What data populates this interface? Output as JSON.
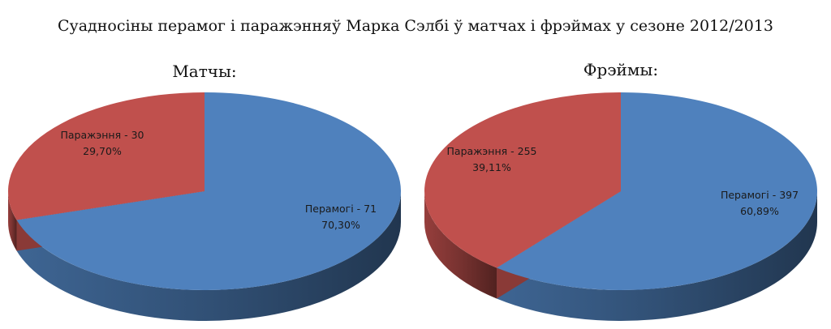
{
  "title": "Суадносіны перамог і паражэнняў Марка Сэлбі ў матчах і фрэймах у сезоне 2012/2013",
  "colors": {
    "win": "#4f81bd",
    "loss": "#c0504d"
  },
  "chart_data": [
    {
      "type": "pie",
      "title": "Матчы:",
      "slices": [
        {
          "label": "Перамогі",
          "value": 71,
          "percent": "70,30%",
          "display": "Перамогі - 71",
          "color": "#4f81bd"
        },
        {
          "label": "Паражэння",
          "value": 30,
          "percent": "29,70%",
          "display": "Паражэння - 30",
          "color": "#c0504d"
        }
      ]
    },
    {
      "type": "pie",
      "title": "Фрэймы:",
      "slices": [
        {
          "label": "Перамогі",
          "value": 397,
          "percent": "60,89%",
          "display": "Перамогі - 397",
          "color": "#4f81bd"
        },
        {
          "label": "Паражэння",
          "value": 255,
          "percent": "39,11%",
          "display": "Паражэння - 255",
          "color": "#c0504d"
        }
      ]
    }
  ]
}
